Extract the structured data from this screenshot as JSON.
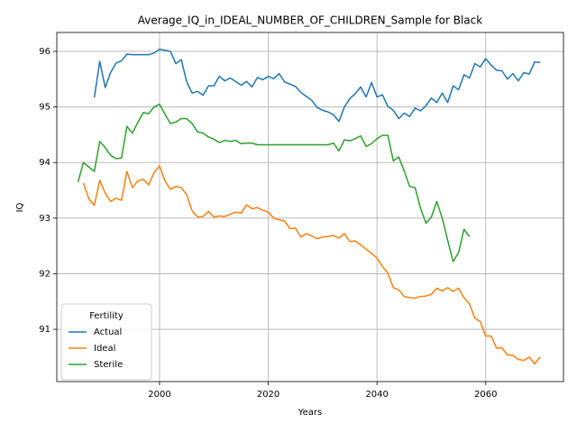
{
  "chart_data": {
    "type": "line",
    "title": "Average_IQ_in_IDEAL_NUMBER_OF_CHILDREN_Sample for Black",
    "xlabel": "Years",
    "ylabel": "IQ",
    "x": [
      1985,
      1986,
      1987,
      1988,
      1989,
      1990,
      1991,
      1992,
      1993,
      1994,
      1995,
      1996,
      1997,
      1998,
      1999,
      2000,
      2001,
      2002,
      2003,
      2004,
      2005,
      2006,
      2007,
      2008,
      2009,
      2010,
      2011,
      2012,
      2013,
      2014,
      2015,
      2016,
      2017,
      2018,
      2019,
      2020,
      2021,
      2022,
      2023,
      2024,
      2025,
      2026,
      2027,
      2028,
      2029,
      2030,
      2031,
      2032,
      2033,
      2034,
      2035,
      2036,
      2037,
      2038,
      2039,
      2040,
      2041,
      2042,
      2043,
      2044,
      2045,
      2046,
      2047,
      2048,
      2049,
      2050,
      2051,
      2052,
      2053,
      2054,
      2055,
      2056,
      2057,
      2058,
      2059,
      2060,
      2061,
      2062,
      2063,
      2064,
      2065,
      2066,
      2067,
      2068,
      2069,
      2070
    ],
    "series": [
      {
        "name": "Actual",
        "color": "#1f77b4",
        "values": [
          null,
          null,
          null,
          95.17,
          95.82,
          95.35,
          95.62,
          95.79,
          95.83,
          95.95,
          95.94,
          95.94,
          95.94,
          95.94,
          95.97,
          96.04,
          96.02,
          96.0,
          95.78,
          95.85,
          95.45,
          95.25,
          95.28,
          95.21,
          95.38,
          95.38,
          95.55,
          95.47,
          95.52,
          95.46,
          95.39,
          95.46,
          95.36,
          95.53,
          95.49,
          95.55,
          95.51,
          95.6,
          95.45,
          95.41,
          95.37,
          95.26,
          95.19,
          95.12,
          94.99,
          94.94,
          94.91,
          94.86,
          94.74,
          95.0,
          95.15,
          95.24,
          95.36,
          95.18,
          95.44,
          95.18,
          95.22,
          95.01,
          94.94,
          94.79,
          94.89,
          94.83,
          94.98,
          94.93,
          95.02,
          95.16,
          95.08,
          95.25,
          95.08,
          95.38,
          95.31,
          95.58,
          95.52,
          95.78,
          95.72,
          95.87,
          95.75,
          95.66,
          95.65,
          95.5,
          95.6,
          95.47,
          95.62,
          95.59,
          95.81,
          95.8
        ]
      },
      {
        "name": "Ideal",
        "color": "#ff7f0e",
        "values": [
          null,
          93.63,
          93.35,
          93.23,
          93.68,
          93.45,
          93.3,
          93.36,
          93.32,
          93.84,
          93.55,
          93.67,
          93.7,
          93.6,
          93.82,
          93.94,
          93.67,
          93.52,
          93.57,
          93.55,
          93.42,
          93.13,
          93.02,
          93.03,
          93.12,
          93.02,
          93.04,
          93.03,
          93.07,
          93.11,
          93.09,
          93.24,
          93.17,
          93.19,
          93.14,
          93.11,
          93.0,
          92.97,
          92.95,
          92.81,
          92.82,
          92.66,
          92.72,
          92.68,
          92.63,
          92.66,
          92.67,
          92.69,
          92.64,
          92.72,
          92.58,
          92.59,
          92.52,
          92.44,
          92.37,
          92.28,
          92.13,
          92.01,
          91.75,
          91.71,
          91.59,
          91.57,
          91.56,
          91.59,
          91.6,
          91.63,
          91.74,
          91.69,
          91.75,
          91.68,
          91.74,
          91.57,
          91.46,
          91.2,
          91.14,
          90.88,
          90.88,
          90.66,
          90.67,
          90.54,
          90.53,
          90.46,
          90.44,
          90.5,
          90.38,
          90.5
        ]
      },
      {
        "name": "Sterile",
        "color": "#2ca02c",
        "values": [
          93.65,
          94.0,
          93.92,
          93.84,
          94.38,
          94.27,
          94.13,
          94.07,
          94.08,
          94.65,
          94.53,
          94.72,
          94.9,
          94.88,
          95.0,
          95.05,
          94.87,
          94.7,
          94.73,
          94.79,
          94.79,
          94.7,
          94.55,
          94.53,
          94.46,
          94.42,
          94.36,
          94.4,
          94.38,
          94.4,
          94.34,
          94.35,
          94.35,
          94.32,
          94.32,
          94.32,
          94.32,
          94.32,
          94.32,
          94.32,
          94.32,
          94.32,
          94.32,
          94.32,
          94.32,
          94.32,
          94.32,
          94.35,
          94.21,
          94.41,
          94.39,
          94.43,
          94.48,
          94.29,
          94.34,
          94.43,
          94.49,
          94.49,
          94.03,
          94.1,
          93.85,
          93.57,
          93.55,
          93.18,
          92.91,
          93.02,
          93.3,
          93.0,
          92.6,
          92.22,
          92.38,
          92.8,
          92.67,
          null,
          null,
          null,
          null,
          null,
          null,
          null,
          null,
          null,
          null,
          null,
          null,
          null
        ]
      }
    ],
    "xlim": [
      1981.1,
      2074.3
    ],
    "ylim": [
      90.06,
      96.34
    ],
    "xticks": [
      2000,
      2020,
      2040,
      2060
    ],
    "yticks": [
      91,
      92,
      93,
      94,
      95,
      96
    ],
    "grid": true,
    "legend": {
      "title": "Fertility",
      "loc": "lower left"
    }
  }
}
